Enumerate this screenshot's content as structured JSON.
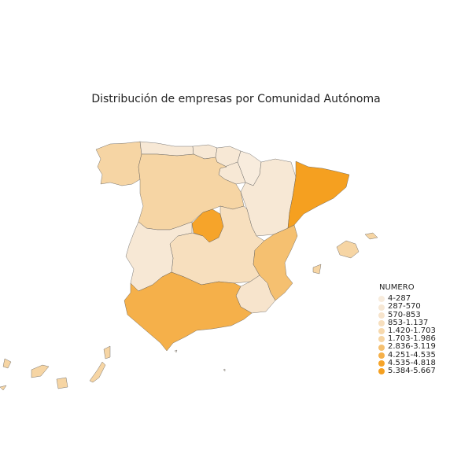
{
  "title": "Distribución de empresas por Comunidad Autónoma",
  "legend": {
    "title": "NUMERO",
    "items": [
      {
        "label": "4-287",
        "color": "#f8ecdd"
      },
      {
        "label": "287-570",
        "color": "#f7e8d5"
      },
      {
        "label": "570-853",
        "color": "#f7e4cc"
      },
      {
        "label": "853-1.137",
        "color": "#f7dfbe"
      },
      {
        "label": "1.420-1.703",
        "color": "#f7d9ad"
      },
      {
        "label": "1.703-1.986",
        "color": "#f6d5a4"
      },
      {
        "label": "2.836-3.119",
        "color": "#f5c070"
      },
      {
        "label": "4.251-4.535",
        "color": "#f5b04a"
      },
      {
        "label": "4.535-4.818",
        "color": "#f6a42a"
      },
      {
        "label": "5.384-5.667",
        "color": "#f5a020"
      }
    ]
  }
}
